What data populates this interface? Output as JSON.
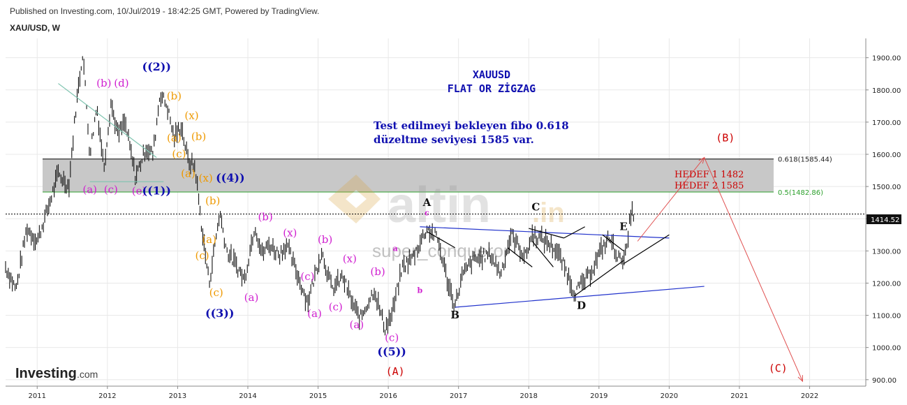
{
  "header": {
    "published": "Published on Investing.com, 10/Jul/2019 - 18:42:25 GMT, Powered by TradingView.",
    "symbol": "XAU/USD, W"
  },
  "logo": {
    "text": "Investing",
    "suffix": ".com"
  },
  "watermark": {
    "main": "altin",
    "tld": ".in",
    "sub": "super_conqueror"
  },
  "annotations": {
    "title_line1": "XAUUSD",
    "title_line2": "FLAT OR ZİGZAG",
    "note_line1": "Test edilmeyi bekleyen fibo 0.618",
    "note_line2": "düzeltme seviyesi 1585 var.",
    "target1": "HEDEF 1   1482",
    "target2": "HEDEF 2  1585"
  },
  "colors": {
    "fib618": "#000000",
    "fib500": "#2ca02c",
    "zone": "#c8c8c8",
    "triangle": "#2233cc",
    "projection": "#e05050",
    "magenta": "#d020d0",
    "orange": "#ee9900",
    "navy": "#1010b0",
    "red": "#cc0000"
  },
  "chart_data": {
    "type": "line",
    "title": "XAU/USD, W",
    "y_ticks": [
      "1900.00",
      "1800.00",
      "1700.00",
      "1600.00",
      "1500.00",
      "1400.00",
      "1300.00",
      "1200.00",
      "1100.00",
      "1000.00",
      "900.00"
    ],
    "x_ticks": [
      "2011",
      "2012",
      "2013",
      "2014",
      "2015",
      "2016",
      "2017",
      "2018",
      "2019",
      "2020",
      "2021",
      "2022"
    ],
    "ylim": [
      880,
      1960
    ],
    "xlim": [
      2010.55,
      2022.8
    ],
    "grid": true,
    "last_price": "1414.52",
    "series": [
      {
        "values": [
          [
            2010.55,
            1250
          ],
          [
            2010.7,
            1180
          ],
          [
            2010.85,
            1370
          ],
          [
            2011.0,
            1330
          ],
          [
            2011.15,
            1430
          ],
          [
            2011.3,
            1540
          ],
          [
            2011.45,
            1500
          ],
          [
            2011.55,
            1740
          ],
          [
            2011.65,
            1920
          ],
          [
            2011.75,
            1600
          ],
          [
            2011.85,
            1750
          ],
          [
            2011.95,
            1560
          ],
          [
            2012.05,
            1760
          ],
          [
            2012.15,
            1660
          ],
          [
            2012.25,
            1700
          ],
          [
            2012.4,
            1530
          ],
          [
            2012.55,
            1620
          ],
          [
            2012.65,
            1600
          ],
          [
            2012.75,
            1790
          ],
          [
            2012.85,
            1750
          ],
          [
            2012.95,
            1650
          ],
          [
            2013.05,
            1690
          ],
          [
            2013.15,
            1580
          ],
          [
            2013.25,
            1560
          ],
          [
            2013.35,
            1360
          ],
          [
            2013.45,
            1200
          ],
          [
            2013.6,
            1420
          ],
          [
            2013.7,
            1300
          ],
          [
            2013.85,
            1250
          ],
          [
            2013.95,
            1210
          ],
          [
            2014.1,
            1380
          ],
          [
            2014.2,
            1290
          ],
          [
            2014.3,
            1320
          ],
          [
            2014.45,
            1290
          ],
          [
            2014.55,
            1320
          ],
          [
            2014.7,
            1230
          ],
          [
            2014.85,
            1140
          ],
          [
            2015.05,
            1300
          ],
          [
            2015.2,
            1180
          ],
          [
            2015.35,
            1220
          ],
          [
            2015.5,
            1130
          ],
          [
            2015.6,
            1090
          ],
          [
            2015.8,
            1180
          ],
          [
            2015.95,
            1060
          ],
          [
            2016.05,
            1100
          ],
          [
            2016.2,
            1250
          ],
          [
            2016.35,
            1280
          ],
          [
            2016.55,
            1370
          ],
          [
            2016.7,
            1340
          ],
          [
            2016.85,
            1200
          ],
          [
            2016.95,
            1130
          ],
          [
            2017.05,
            1220
          ],
          [
            2017.2,
            1270
          ],
          [
            2017.45,
            1290
          ],
          [
            2017.6,
            1230
          ],
          [
            2017.75,
            1350
          ],
          [
            2017.95,
            1280
          ],
          [
            2018.05,
            1350
          ],
          [
            2018.25,
            1330
          ],
          [
            2018.4,
            1300
          ],
          [
            2018.55,
            1230
          ],
          [
            2018.65,
            1170
          ],
          [
            2018.85,
            1220
          ],
          [
            2019.05,
            1310
          ],
          [
            2019.15,
            1340
          ],
          [
            2019.3,
            1270
          ],
          [
            2019.4,
            1300
          ],
          [
            2019.45,
            1420
          ],
          [
            2019.5,
            1414
          ]
        ]
      }
    ],
    "fib_levels": [
      {
        "label": "0.618(1585.44)",
        "value": 1585.44
      },
      {
        "label": "0.5(1482.86)",
        "value": 1482.86
      }
    ],
    "wave_labels": [
      {
        "text": "(b)",
        "x": 2011.95,
        "y": 1810,
        "color": "magenta"
      },
      {
        "text": "(d)",
        "x": 2012.2,
        "y": 1810,
        "color": "magenta"
      },
      {
        "text": "((2))",
        "x": 2012.7,
        "y": 1860,
        "color": "navy"
      },
      {
        "text": "(b)",
        "x": 2012.95,
        "y": 1770,
        "color": "orange"
      },
      {
        "text": "(x)",
        "x": 2013.2,
        "y": 1710,
        "color": "orange"
      },
      {
        "text": "(a)",
        "x": 2012.95,
        "y": 1640,
        "color": "orange"
      },
      {
        "text": "(b)",
        "x": 2013.3,
        "y": 1645,
        "color": "orange"
      },
      {
        "text": "(c)",
        "x": 2013.02,
        "y": 1590,
        "color": "orange"
      },
      {
        "text": "(a)",
        "x": 2013.15,
        "y": 1530,
        "color": "orange"
      },
      {
        "text": "(x)",
        "x": 2013.4,
        "y": 1515,
        "color": "orange"
      },
      {
        "text": "((4))",
        "x": 2013.75,
        "y": 1515,
        "color": "navy"
      },
      {
        "text": "(a)",
        "x": 2011.75,
        "y": 1480,
        "color": "magenta"
      },
      {
        "text": "(c)",
        "x": 2012.05,
        "y": 1480,
        "color": "magenta"
      },
      {
        "text": "(e)",
        "x": 2012.45,
        "y": 1475,
        "color": "magenta"
      },
      {
        "text": "((1))",
        "x": 2012.7,
        "y": 1475,
        "color": "navy"
      },
      {
        "text": "(b)",
        "x": 2013.5,
        "y": 1445,
        "color": "orange"
      },
      {
        "text": "(b)",
        "x": 2014.25,
        "y": 1395,
        "color": "magenta"
      },
      {
        "text": "(x)",
        "x": 2014.6,
        "y": 1345,
        "color": "magenta"
      },
      {
        "text": "(a)",
        "x": 2013.45,
        "y": 1325,
        "color": "orange"
      },
      {
        "text": "(c)",
        "x": 2013.35,
        "y": 1275,
        "color": "orange"
      },
      {
        "text": "(b)",
        "x": 2015.1,
        "y": 1325,
        "color": "magenta"
      },
      {
        "text": "(x)",
        "x": 2015.45,
        "y": 1265,
        "color": "magenta"
      },
      {
        "text": "(c)",
        "x": 2014.85,
        "y": 1210,
        "color": "magenta"
      },
      {
        "text": "(b)",
        "x": 2015.85,
        "y": 1225,
        "color": "magenta"
      },
      {
        "text": "(c)",
        "x": 2013.55,
        "y": 1160,
        "color": "orange"
      },
      {
        "text": "(a)",
        "x": 2014.05,
        "y": 1145,
        "color": "magenta"
      },
      {
        "text": "(c)",
        "x": 2015.25,
        "y": 1115,
        "color": "magenta"
      },
      {
        "text": "(a)",
        "x": 2014.95,
        "y": 1095,
        "color": "magenta"
      },
      {
        "text": "((3))",
        "x": 2013.6,
        "y": 1095,
        "color": "navy"
      },
      {
        "text": "(a)",
        "x": 2015.55,
        "y": 1060,
        "color": "magenta"
      },
      {
        "text": "(c)",
        "x": 2016.05,
        "y": 1020,
        "color": "magenta"
      },
      {
        "text": "((5))",
        "x": 2016.05,
        "y": 975,
        "color": "navy"
      },
      {
        "text": "(A)",
        "x": 2016.1,
        "y": 915,
        "color": "red"
      },
      {
        "text": "(B)",
        "x": 2020.8,
        "y": 1640,
        "color": "red"
      },
      {
        "text": "(C)",
        "x": 2021.55,
        "y": 925,
        "color": "red"
      }
    ],
    "triangle_labels": [
      {
        "text": "A",
        "x": 2016.55,
        "y": 1440
      },
      {
        "text": "C",
        "x": 2018.1,
        "y": 1425
      },
      {
        "text": "E",
        "x": 2019.35,
        "y": 1365
      },
      {
        "text": "B",
        "x": 2016.95,
        "y": 1090
      },
      {
        "text": "D",
        "x": 2018.75,
        "y": 1120
      }
    ],
    "small_labels": [
      {
        "text": "c",
        "x": 2016.55,
        "y": 1410,
        "color": "magenta"
      },
      {
        "text": "a",
        "x": 2016.1,
        "y": 1300,
        "color": "magenta"
      },
      {
        "text": "b",
        "x": 2016.45,
        "y": 1170,
        "color": "magenta"
      }
    ],
    "projection": [
      [
        2019.55,
        1330
      ],
      [
        2020.5,
        1590
      ],
      [
        2021.9,
        895
      ]
    ]
  }
}
